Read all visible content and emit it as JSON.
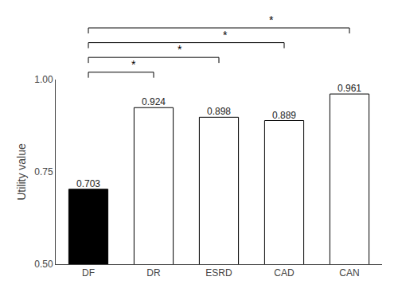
{
  "chart_data": {
    "type": "bar",
    "categories": [
      "DF",
      "DR",
      "ESRD",
      "CAD",
      "CAN"
    ],
    "values": [
      0.703,
      0.924,
      0.898,
      0.889,
      0.961
    ],
    "colors": [
      "black",
      "white",
      "white",
      "white",
      "white"
    ],
    "ylabel": "Utility value",
    "ylim": [
      0.5,
      1.0
    ],
    "yticks": [
      {
        "value": 0.5,
        "label": "0.50"
      },
      {
        "value": 0.75,
        "label": "0.75"
      },
      {
        "value": 1.0,
        "label": "1.00"
      }
    ],
    "data_labels": true,
    "grid": false,
    "brackets": [
      {
        "from": "DF",
        "to": "DR",
        "label": "*"
      },
      {
        "from": "DF",
        "to": "ESRD",
        "label": "*"
      },
      {
        "from": "DF",
        "to": "CAD",
        "label": "*"
      },
      {
        "from": "DF",
        "to": "CAN",
        "label": "*"
      }
    ]
  }
}
